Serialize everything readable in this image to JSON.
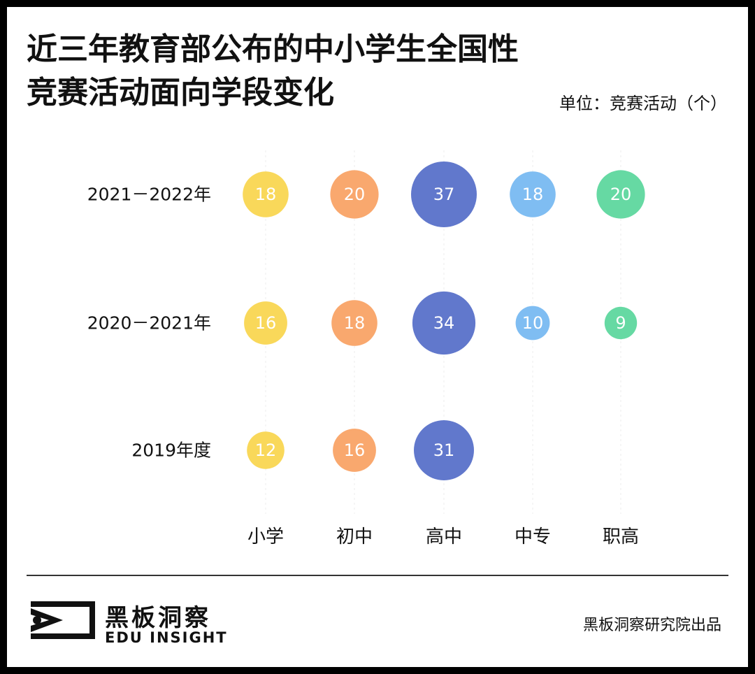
{
  "header": {
    "title_line1": "近三年教育部公布的中小学生全国性",
    "title_line2": "竞赛活动面向学段变化",
    "unit": "单位：竞赛活动（个）"
  },
  "chart_data": {
    "type": "bubble",
    "categories": [
      "小学",
      "初中",
      "高中",
      "中专",
      "职高"
    ],
    "rows": [
      "2021－2022年",
      "2020－2021年",
      "2019年度"
    ],
    "values": [
      [
        18,
        20,
        37,
        18,
        20
      ],
      [
        16,
        18,
        34,
        10,
        9
      ],
      [
        12,
        16,
        31,
        null,
        null
      ]
    ],
    "colors": [
      "#F9D85A",
      "#F9A86E",
      "#6178CC",
      "#7FBDF2",
      "#66D9A3"
    ],
    "grid_color": "#EEEEEE",
    "label_color": "#FFFFFF"
  },
  "footer": {
    "brand_cn": "黑板洞察",
    "brand_en": "EDU INSIGHT",
    "credit": "黑板洞察研究院出品"
  }
}
